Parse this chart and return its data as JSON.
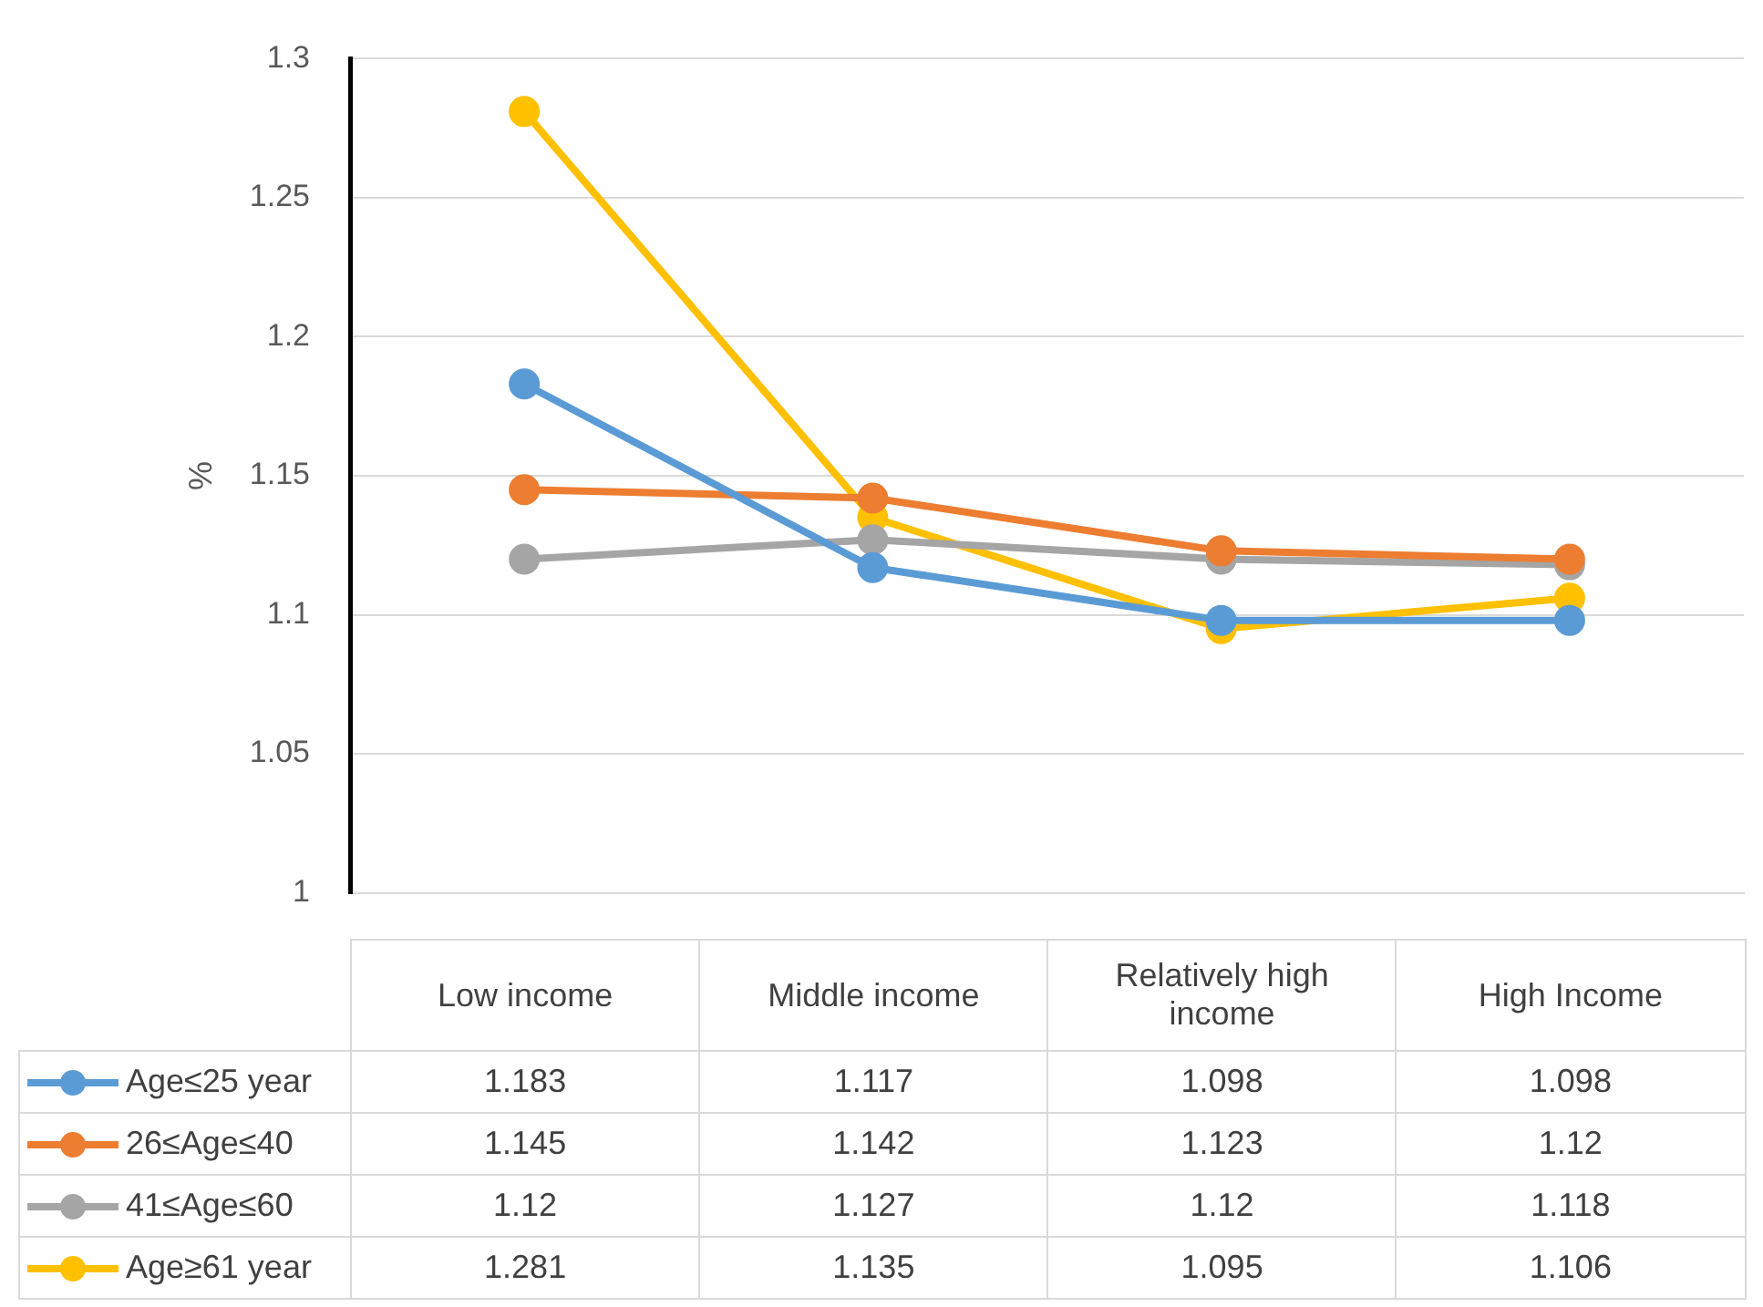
{
  "chart_data": {
    "type": "line",
    "ylabel": "%",
    "categories": [
      "Low income",
      "Middle income",
      "Relatively high income",
      "High Income"
    ],
    "series": [
      {
        "name": "Age≤25 year",
        "color": "#5b9bd5",
        "values": [
          1.183,
          1.117,
          1.098,
          1.098
        ]
      },
      {
        "name": "26≤Age≤40",
        "color": "#ed7d31",
        "values": [
          1.145,
          1.142,
          1.123,
          1.12
        ]
      },
      {
        "name": "41≤Age≤60",
        "color": "#a5a5a5",
        "values": [
          1.12,
          1.127,
          1.12,
          1.118
        ]
      },
      {
        "name": "Age≥61 year",
        "color": "#ffc000",
        "values": [
          1.281,
          1.135,
          1.095,
          1.106
        ]
      }
    ],
    "ylim": [
      1,
      1.3
    ],
    "yticks": [
      1,
      1.05,
      1.1,
      1.15,
      1.2,
      1.25,
      1.3
    ],
    "grid": "y",
    "legend": "bottom",
    "marker": "circle",
    "line_style": "solid",
    "data_labels": true
  }
}
